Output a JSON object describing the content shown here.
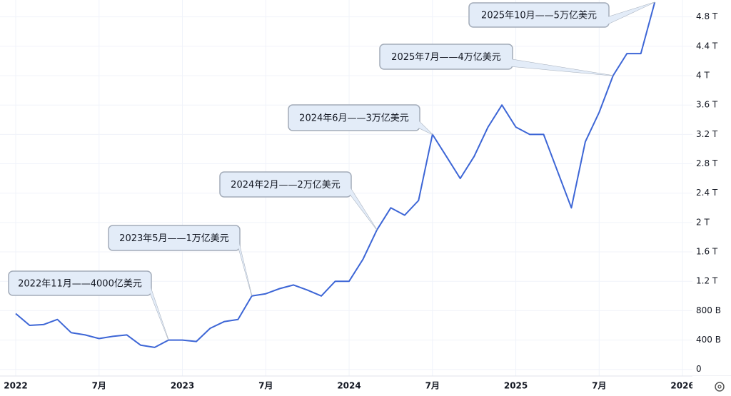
{
  "chart_data": {
    "type": "line",
    "x": [
      "2021-12",
      "2022-01",
      "2022-02",
      "2022-03",
      "2022-04",
      "2022-05",
      "2022-06",
      "2022-07",
      "2022-08",
      "2022-09",
      "2022-10",
      "2022-11",
      "2022-12",
      "2023-01",
      "2023-02",
      "2023-03",
      "2023-04",
      "2023-05",
      "2023-06",
      "2023-07",
      "2023-08",
      "2023-09",
      "2023-10",
      "2023-11",
      "2023-12",
      "2024-01",
      "2024-02",
      "2024-03",
      "2024-04",
      "2024-05",
      "2024-06",
      "2024-07",
      "2024-08",
      "2024-09",
      "2024-10",
      "2024-11",
      "2024-12",
      "2025-01",
      "2025-02",
      "2025-03",
      "2025-04",
      "2025-05",
      "2025-06",
      "2025-07",
      "2025-08",
      "2025-09",
      "2025-10"
    ],
    "series": [
      {
        "color": "#3d66d6",
        "values": [
          760,
          600,
          610,
          680,
          500,
          470,
          420,
          450,
          470,
          330,
          300,
          400,
          400,
          380,
          560,
          650,
          680,
          1000,
          1030,
          1100,
          1150,
          1080,
          1000,
          1200,
          1200,
          1500,
          1900,
          2200,
          2100,
          2300,
          3200,
          2900,
          2600,
          2900,
          3300,
          3600,
          3300,
          3200,
          3200,
          2700,
          2200,
          3100,
          3500,
          4000,
          4300,
          4300,
          5000
        ]
      }
    ],
    "xticks": [
      {
        "value": "2022-01",
        "label": "2022"
      },
      {
        "value": "2022-07",
        "label": "7月"
      },
      {
        "value": "2023-01",
        "label": "2023"
      },
      {
        "value": "2023-07",
        "label": "7月"
      },
      {
        "value": "2024-01",
        "label": "2024"
      },
      {
        "value": "2024-07",
        "label": "7月"
      },
      {
        "value": "2025-01",
        "label": "2025"
      },
      {
        "value": "2025-07",
        "label": "7月"
      },
      {
        "value": "2026-01",
        "label": "2026"
      }
    ],
    "ylim": [
      -90,
      5030
    ],
    "yticks": [
      0,
      {
        "value": 400,
        "label": "400 B"
      },
      {
        "value": 800,
        "label": "800 B"
      },
      {
        "value": 1200,
        "label": "1.2 T"
      },
      {
        "value": 1600,
        "label": "1.6 T"
      },
      {
        "value": 2000,
        "label": "2 T"
      },
      {
        "value": 2400,
        "label": "2.4 T"
      },
      {
        "value": 2800,
        "label": "2.8 T"
      },
      {
        "value": 3200,
        "label": "3.2 T"
      },
      {
        "value": 3600,
        "label": "3.6 T"
      },
      {
        "value": 4000,
        "label": "4 T"
      },
      {
        "value": 4400,
        "label": "4.4 T"
      },
      {
        "value": 4800,
        "label": "4.8 T"
      }
    ],
    "grid": true,
    "annotations": [
      {
        "text": "2022年11月——4000亿美元",
        "x": "2022-11"
      },
      {
        "text": "2023年5月——1万亿美元",
        "x": "2023-05"
      },
      {
        "text": "2024年2月——2万亿美元",
        "x": "2024-02"
      },
      {
        "text": "2024年6月——3万亿美元",
        "x": "2024-06"
      },
      {
        "text": "2025年7月——4万亿美元",
        "x": "2025-07"
      },
      {
        "text": "2025年10月——5万亿美元",
        "x": "2025-10"
      }
    ]
  }
}
